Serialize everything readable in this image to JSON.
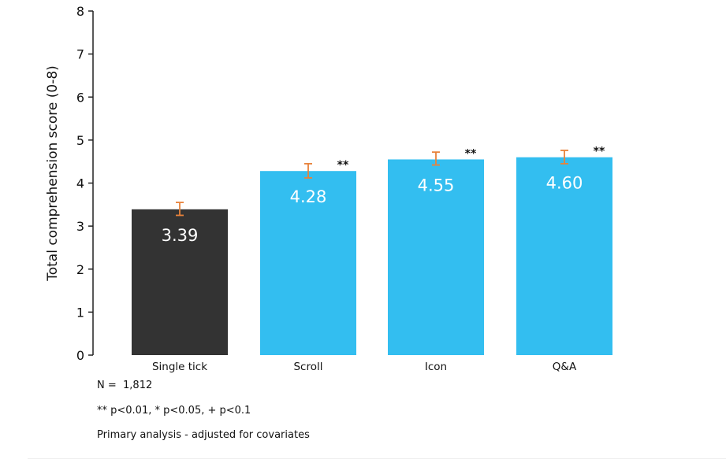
{
  "chart_data": {
    "type": "bar",
    "categories": [
      "Single tick",
      "Scroll",
      "Icon",
      "Q&A"
    ],
    "values": [
      3.39,
      4.28,
      4.55,
      4.6
    ],
    "value_labels": [
      "3.39",
      "4.28",
      "4.55",
      "4.60"
    ],
    "error_low": [
      3.25,
      4.12,
      4.42,
      4.45
    ],
    "error_high": [
      3.55,
      4.45,
      4.72,
      4.76
    ],
    "significance": [
      "",
      "**",
      "**",
      "**"
    ],
    "ylabel": "Total comprehension score (0-8)",
    "xlabel": "",
    "ylim": [
      0,
      8
    ],
    "yticks": [
      0,
      1,
      2,
      3,
      4,
      5,
      6,
      7,
      8
    ],
    "grid": false,
    "colors": {
      "control": "#333333",
      "treatment": "#33BEF0",
      "error_bar": "#E8823A",
      "axis": "#222222",
      "value_label": "#FFFFFF"
    }
  },
  "notes": {
    "n": "N =  1,812",
    "significance": "** p<0.01, * p<0.05, + p<0.1",
    "analysis": "Primary analysis - adjusted for covariates"
  }
}
